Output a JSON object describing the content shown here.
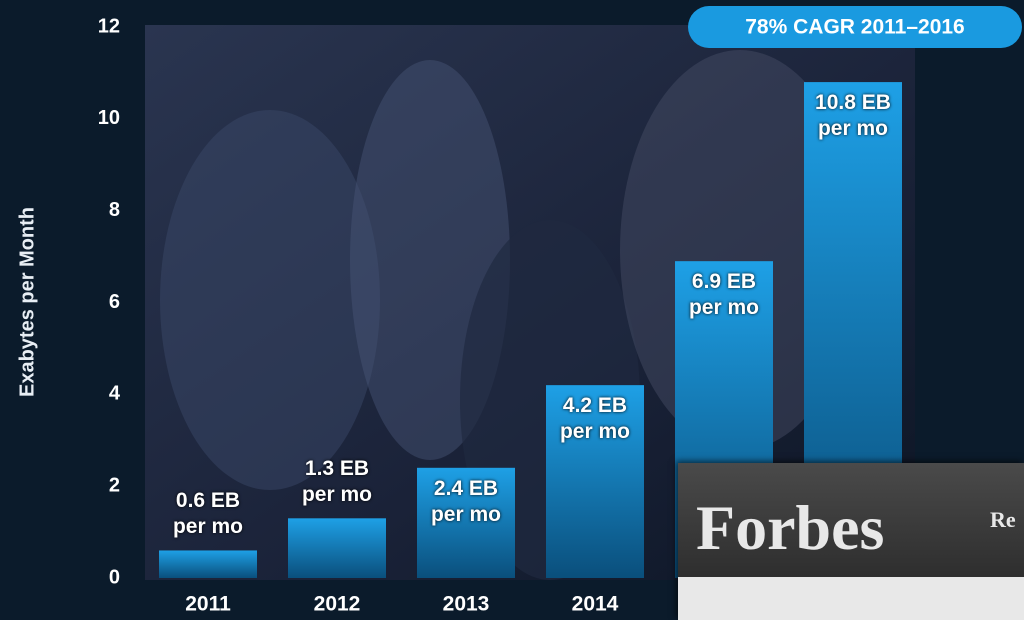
{
  "chart_data": {
    "type": "bar",
    "annotation": "78% CAGR 2011–2016",
    "y_label": "Exabytes per Month",
    "categories": [
      "2011",
      "2012",
      "2013",
      "2014",
      null,
      null
    ],
    "values": [
      0.6,
      1.3,
      2.4,
      4.2,
      6.9,
      10.8
    ],
    "value_labels": [
      "0.6 EB per mo",
      "1.3 EB per mo",
      "2.4 EB per mo",
      "4.2 EB per mo",
      "6.9 EB per mo",
      "10.8 EB per mo"
    ],
    "color": "#1a9ae0",
    "ylim": [
      0,
      12
    ],
    "yticks": [
      0,
      2,
      4,
      6,
      8,
      10,
      12
    ]
  },
  "overlay": {
    "logo": "Forbes",
    "text": "Re"
  }
}
